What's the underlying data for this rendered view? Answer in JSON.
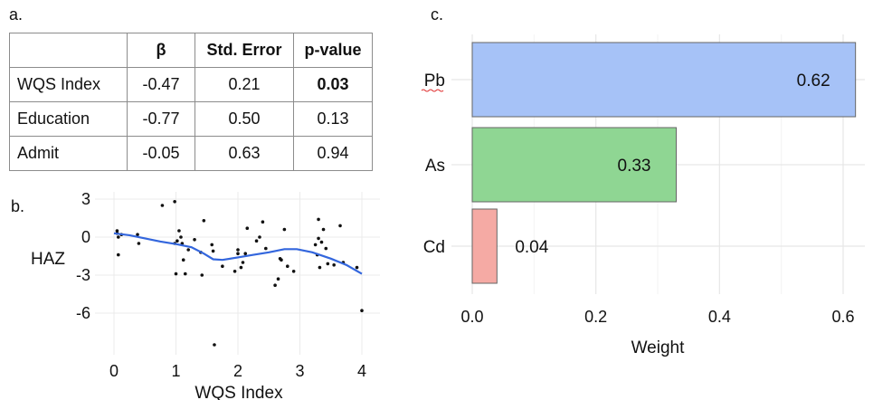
{
  "panel_labels": {
    "a": "a.",
    "b": "b.",
    "c": "c."
  },
  "table": {
    "headers": [
      "",
      "β",
      "Std. Error",
      "p-value"
    ],
    "rows": [
      {
        "name": "WQS Index",
        "beta": "-0.47",
        "se": "0.21",
        "p": "0.03",
        "p_bold": true
      },
      {
        "name": "Education",
        "beta": "-0.77",
        "se": "0.50",
        "p": "0.13",
        "p_bold": false
      },
      {
        "name": "Admit",
        "beta": "-0.05",
        "se": "0.63",
        "p": "0.94",
        "p_bold": false
      }
    ]
  },
  "chart_data": [
    {
      "type": "scatter",
      "xlabel": "WQS Index",
      "ylabel": "HAZ",
      "xlim": [
        0,
        4
      ],
      "ylim": [
        -8.5,
        3.3
      ],
      "xticks": [
        0,
        1,
        2,
        3,
        4
      ],
      "yticks": [
        3,
        0,
        -3,
        -6
      ],
      "grid": true,
      "points": [
        [
          0.05,
          0.5
        ],
        [
          0.05,
          0.3
        ],
        [
          0.07,
          0.0
        ],
        [
          0.07,
          -1.4
        ],
        [
          0.12,
          0.2
        ],
        [
          0.38,
          0.2
        ],
        [
          0.4,
          -0.5
        ],
        [
          0.78,
          2.5
        ],
        [
          0.98,
          2.8
        ],
        [
          0.98,
          -0.5
        ],
        [
          1.0,
          -2.9
        ],
        [
          1.02,
          -0.3
        ],
        [
          1.05,
          0.5
        ],
        [
          1.08,
          0.0
        ],
        [
          1.1,
          -0.5
        ],
        [
          1.12,
          -1.8
        ],
        [
          1.15,
          -2.9
        ],
        [
          1.2,
          -1.0
        ],
        [
          1.3,
          -0.2
        ],
        [
          1.4,
          -1.2
        ],
        [
          1.42,
          -3.0
        ],
        [
          1.45,
          1.3
        ],
        [
          1.58,
          -0.6
        ],
        [
          1.6,
          -1.1
        ],
        [
          1.62,
          -8.5
        ],
        [
          1.75,
          -2.3
        ],
        [
          1.95,
          -2.7
        ],
        [
          2.0,
          -1.3
        ],
        [
          2.0,
          -1.0
        ],
        [
          2.05,
          -2.4
        ],
        [
          2.08,
          -2.0
        ],
        [
          2.12,
          -1.3
        ],
        [
          2.15,
          0.7
        ],
        [
          2.3,
          -0.3
        ],
        [
          2.35,
          0.0
        ],
        [
          2.4,
          1.2
        ],
        [
          2.45,
          -0.9
        ],
        [
          2.6,
          -3.8
        ],
        [
          2.65,
          -3.3
        ],
        [
          2.68,
          -1.7
        ],
        [
          2.7,
          -1.8
        ],
        [
          2.75,
          0.6
        ],
        [
          2.8,
          -2.3
        ],
        [
          2.9,
          -2.7
        ],
        [
          3.25,
          -0.6
        ],
        [
          3.28,
          -1.4
        ],
        [
          3.3,
          1.4
        ],
        [
          3.3,
          -0.1
        ],
        [
          3.32,
          -2.4
        ],
        [
          3.35,
          -0.4
        ],
        [
          3.38,
          0.6
        ],
        [
          3.42,
          -0.9
        ],
        [
          3.45,
          -2.1
        ],
        [
          3.55,
          -2.2
        ],
        [
          3.65,
          0.9
        ],
        [
          3.7,
          -2.0
        ],
        [
          3.92,
          -2.4
        ],
        [
          4.0,
          -5.8
        ]
      ],
      "smooth_line": [
        [
          0.0,
          0.3
        ],
        [
          0.25,
          0.15
        ],
        [
          0.5,
          -0.1
        ],
        [
          0.75,
          -0.35
        ],
        [
          1.0,
          -0.55
        ],
        [
          1.25,
          -0.8
        ],
        [
          1.45,
          -1.3
        ],
        [
          1.6,
          -1.75
        ],
        [
          1.75,
          -1.8
        ],
        [
          2.0,
          -1.6
        ],
        [
          2.25,
          -1.4
        ],
        [
          2.5,
          -1.2
        ],
        [
          2.75,
          -0.95
        ],
        [
          2.95,
          -0.95
        ],
        [
          3.2,
          -1.2
        ],
        [
          3.5,
          -1.7
        ],
        [
          3.75,
          -2.2
        ],
        [
          4.0,
          -2.9
        ]
      ],
      "line_color": "#3366dd"
    },
    {
      "type": "bar",
      "orientation": "horizontal",
      "categories": [
        "Pb",
        "As",
        "Cd"
      ],
      "values": [
        0.62,
        0.33,
        0.04
      ],
      "labels": [
        "0.62",
        "0.33",
        "0.04"
      ],
      "colors": [
        "#a6c2f7",
        "#8fd693",
        "#f5aaa4"
      ],
      "xlabel": "Weight",
      "xlim": [
        -0.04,
        0.66
      ],
      "xticks": [
        0.0,
        0.2,
        0.4,
        0.6
      ],
      "xtick_labels": [
        "0.0",
        "0.2",
        "0.4",
        "0.6"
      ],
      "grid": true
    }
  ]
}
